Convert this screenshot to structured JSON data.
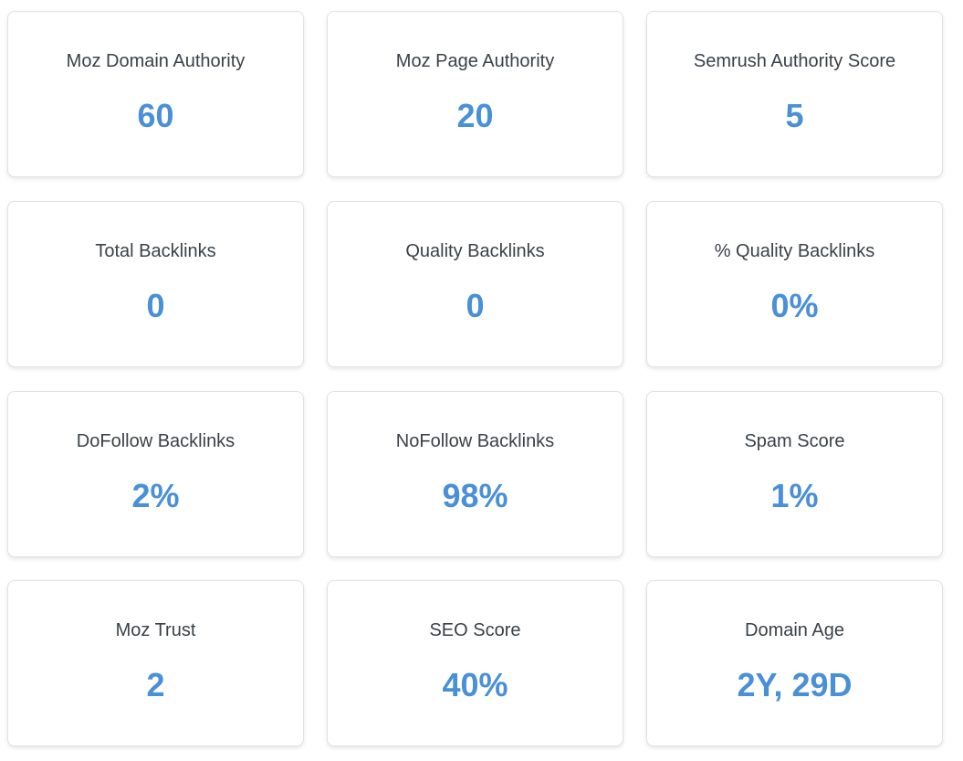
{
  "metrics": [
    {
      "label": "Moz Domain Authority",
      "value": "60"
    },
    {
      "label": "Moz Page Authority",
      "value": "20"
    },
    {
      "label": "Semrush Authority Score",
      "value": "5"
    },
    {
      "label": "Total Backlinks",
      "value": "0"
    },
    {
      "label": "Quality Backlinks",
      "value": "0"
    },
    {
      "label": "% Quality Backlinks",
      "value": "0%"
    },
    {
      "label": "DoFollow Backlinks",
      "value": "2%"
    },
    {
      "label": "NoFollow Backlinks",
      "value": "98%"
    },
    {
      "label": "Spam Score",
      "value": "1%"
    },
    {
      "label": "Moz Trust",
      "value": "2"
    },
    {
      "label": "SEO Score",
      "value": "40%"
    },
    {
      "label": "Domain Age",
      "value": "2Y, 29D"
    }
  ],
  "colors": {
    "label": "#3b4148",
    "value": "#4a90d6",
    "card_border": "#e2e2e2"
  }
}
